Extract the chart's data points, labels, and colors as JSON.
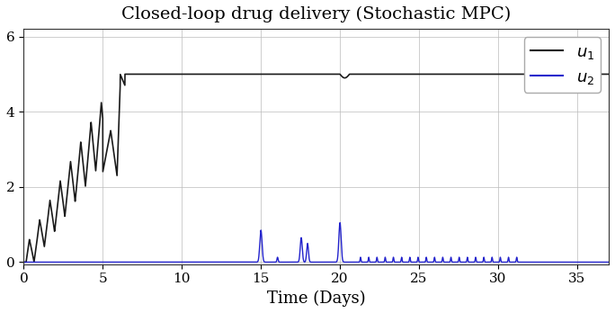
{
  "title": "Closed-loop drug delivery (Stochastic MPC)",
  "xlabel": "Time (Days)",
  "xlim": [
    0,
    37
  ],
  "ylim": [
    -0.05,
    6.2
  ],
  "yticks": [
    0,
    2,
    4,
    6
  ],
  "xticks": [
    0,
    5,
    10,
    15,
    20,
    25,
    30,
    35
  ],
  "u1_color": "#1a1a1a",
  "u2_color": "#2222cc",
  "title_fontsize": 14,
  "label_fontsize": 13,
  "tick_fontsize": 11,
  "legend_fontsize": 13,
  "figsize": [
    6.84,
    3.48
  ],
  "dpi": 100
}
